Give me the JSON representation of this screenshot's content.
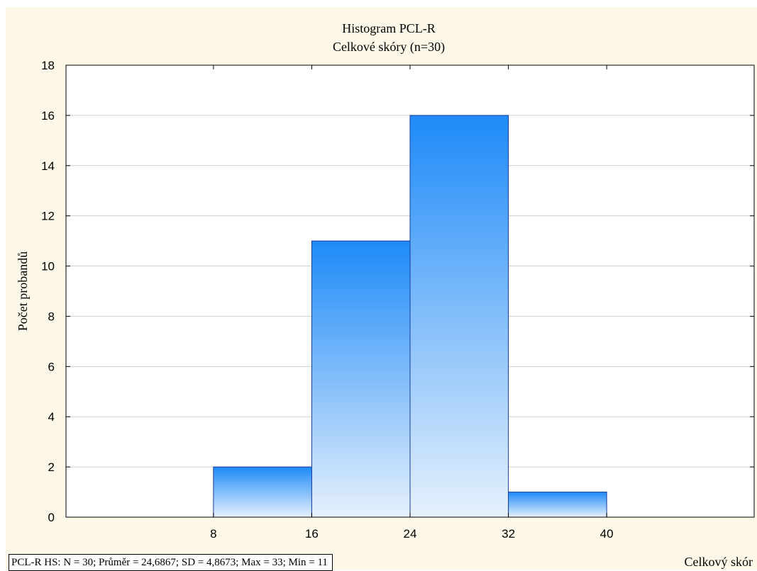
{
  "chart_data": {
    "type": "bar",
    "title": "Histogram PCL-R",
    "subtitle": "Celkové skóry (n=30)",
    "xlabel": "Celkový skór",
    "ylabel": "Počet probandů",
    "bins": [
      {
        "from": 8,
        "to": 16,
        "count": 2
      },
      {
        "from": 16,
        "to": 24,
        "count": 11
      },
      {
        "from": 24,
        "to": 32,
        "count": 16
      },
      {
        "from": 32,
        "to": 40,
        "count": 1
      }
    ],
    "xlim": [
      -4,
      52
    ],
    "ylim": [
      0,
      18
    ],
    "x_ticks": [
      8,
      16,
      24,
      32,
      40
    ],
    "y_ticks": [
      0,
      2,
      4,
      6,
      8,
      10,
      12,
      14,
      16,
      18
    ],
    "grid": "horizontal",
    "bar_color_top": "#1e8af8",
    "bar_color_bottom": "#e6f1fc",
    "background_color": "#fdf8e7",
    "stats_text": "PCL-R  HS: N = 30; Průměr = 24,6867; SD = 4,8673; Max = 33; Min = 11"
  }
}
